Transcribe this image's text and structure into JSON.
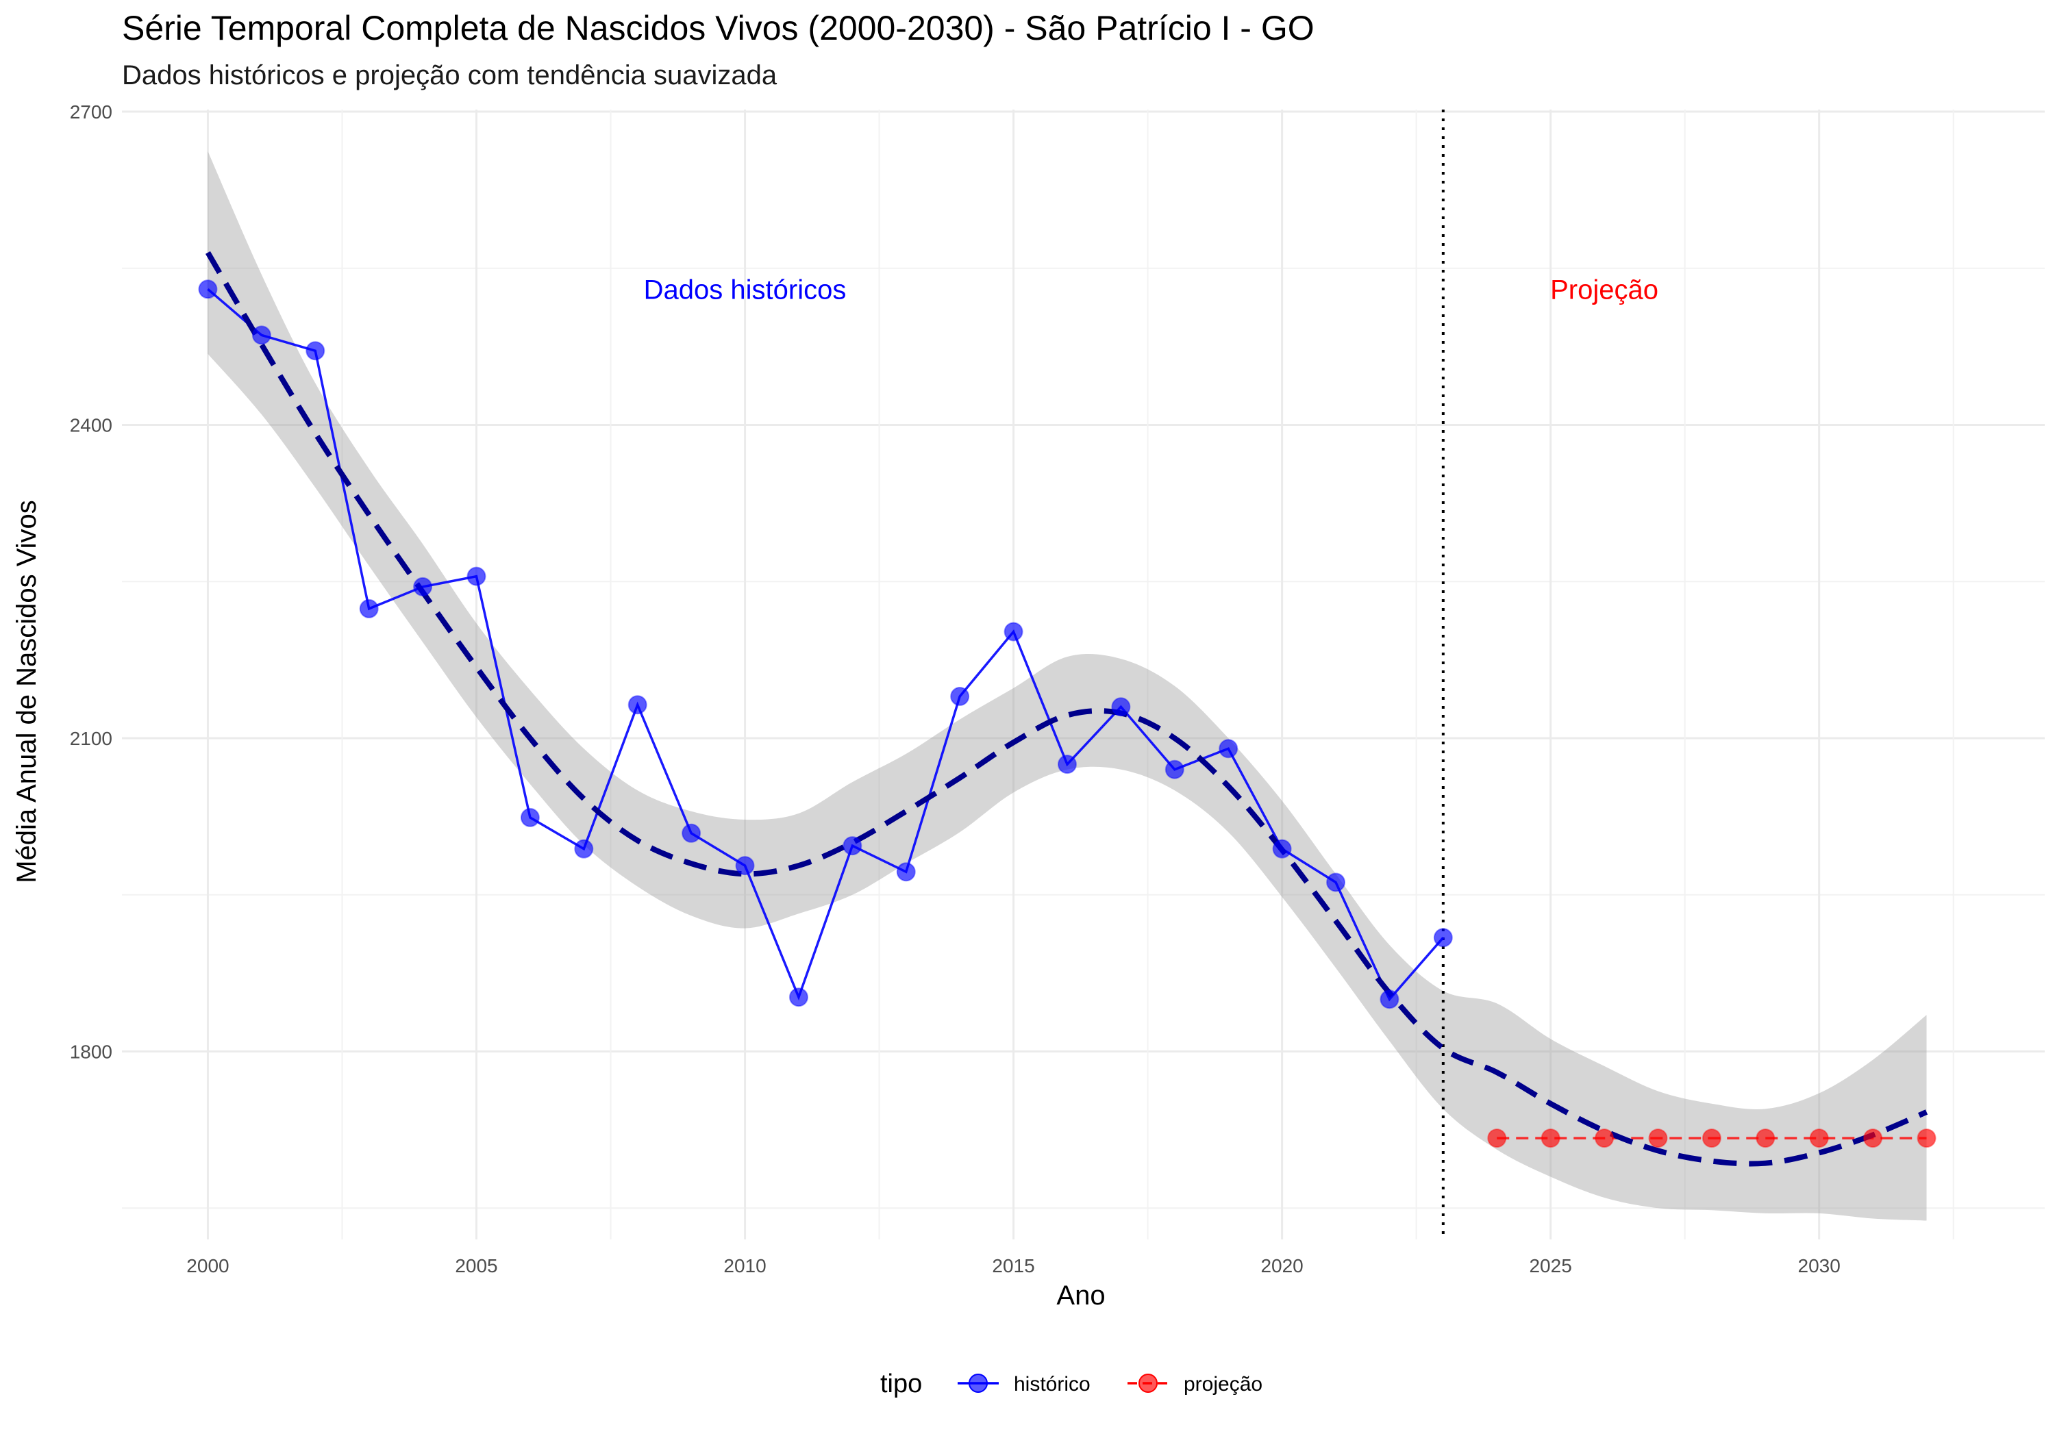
{
  "chart_data": {
    "type": "line",
    "title": "Série Temporal Completa de Nascidos Vivos (2000-2030) -  São Patrício I - GO",
    "subtitle": "Dados históricos e projeção com tendência suavizada",
    "xlabel": "Ano",
    "ylabel": "Média Anual de Nascidos Vivos",
    "xlim": [
      1998.4,
      2034.2
    ],
    "ylim": [
      1620,
      2702
    ],
    "x_ticks": [
      2000,
      2005,
      2010,
      2015,
      2020,
      2025,
      2030
    ],
    "y_ticks": [
      1800,
      2100,
      2400,
      2700
    ],
    "grid": true,
    "vline_x": 2023,
    "annotations": [
      {
        "text": "Dados históricos",
        "x": 2010,
        "y": 2530,
        "color": "#0000ff"
      },
      {
        "text": "Projeção",
        "x": 2026,
        "y": 2530,
        "color": "#ff0000"
      }
    ],
    "legend": {
      "title": "tipo",
      "position": "bottom"
    },
    "series": [
      {
        "name": "histórico",
        "color": "#0000ff",
        "x": [
          2000,
          2001,
          2002,
          2003,
          2004,
          2005,
          2006,
          2007,
          2008,
          2009,
          2010,
          2011,
          2012,
          2013,
          2014,
          2015,
          2016,
          2017,
          2018,
          2019,
          2020,
          2021,
          2022,
          2023
        ],
        "values": [
          2530,
          2486,
          2471,
          2224,
          2245,
          2255,
          2024,
          1994,
          2132,
          2009,
          1978,
          1852,
          1997,
          1972,
          2140,
          2202,
          2075,
          2130,
          2070,
          2090,
          1994,
          1962,
          1850,
          1909
        ]
      },
      {
        "name": "projeção",
        "color": "#ff0000",
        "x": [
          2024,
          2025,
          2026,
          2027,
          2028,
          2029,
          2030,
          2031,
          2032
        ],
        "values": [
          1717,
          1717,
          1717,
          1717,
          1717,
          1717,
          1717,
          1717,
          1717
        ]
      }
    ],
    "trend": {
      "color": "#00008b",
      "x": [
        2000,
        2001,
        2002,
        2003,
        2004,
        2005,
        2006,
        2007,
        2008,
        2009,
        2010,
        2011,
        2012,
        2013,
        2014,
        2015,
        2016,
        2017,
        2018,
        2019,
        2020,
        2021,
        2022,
        2023,
        2024,
        2025,
        2026,
        2027,
        2028,
        2029,
        2030,
        2031,
        2032
      ],
      "values": [
        2565,
        2477,
        2392,
        2314,
        2240,
        2168,
        2100,
        2042,
        2002,
        1980,
        1970,
        1978,
        2000,
        2030,
        2062,
        2096,
        2122,
        2124,
        2100,
        2054,
        1993,
        1925,
        1856,
        1803,
        1780,
        1750,
        1724,
        1705,
        1695,
        1693,
        1703,
        1720,
        1742
      ],
      "ci_low": [
        2468,
        2410,
        2340,
        2265,
        2192,
        2120,
        2056,
        1998,
        1958,
        1930,
        1918,
        1932,
        1950,
        1980,
        2010,
        2048,
        2070,
        2070,
        2050,
        2010,
        1948,
        1880,
        1810,
        1745,
        1706,
        1680,
        1660,
        1650,
        1648,
        1645,
        1645,
        1640,
        1638
      ],
      "ci_high": [
        2662,
        2544,
        2440,
        2358,
        2286,
        2210,
        2146,
        2090,
        2050,
        2030,
        2022,
        2028,
        2058,
        2085,
        2118,
        2148,
        2178,
        2176,
        2150,
        2100,
        2040,
        1970,
        1902,
        1858,
        1846,
        1812,
        1786,
        1762,
        1750,
        1745,
        1760,
        1792,
        1835
      ]
    }
  }
}
